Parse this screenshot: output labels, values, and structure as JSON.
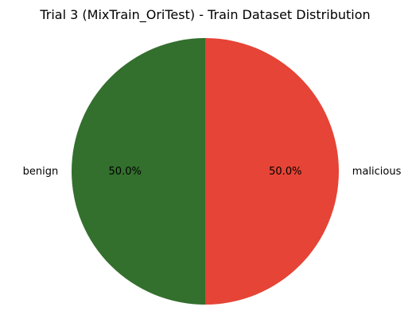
{
  "chart_data": {
    "type": "pie",
    "title": "Trial 3 (MixTrain_OriTest) - Train Dataset Distribution",
    "categories": [
      "benign",
      "malicious"
    ],
    "values": [
      50.0,
      50.0
    ],
    "percent_labels": [
      "50.0%",
      "50.0%"
    ],
    "colors": [
      "#336f2d",
      "#e54436"
    ],
    "start_angle_deg": 90,
    "direction": "counterclockwise",
    "legend": "none"
  }
}
